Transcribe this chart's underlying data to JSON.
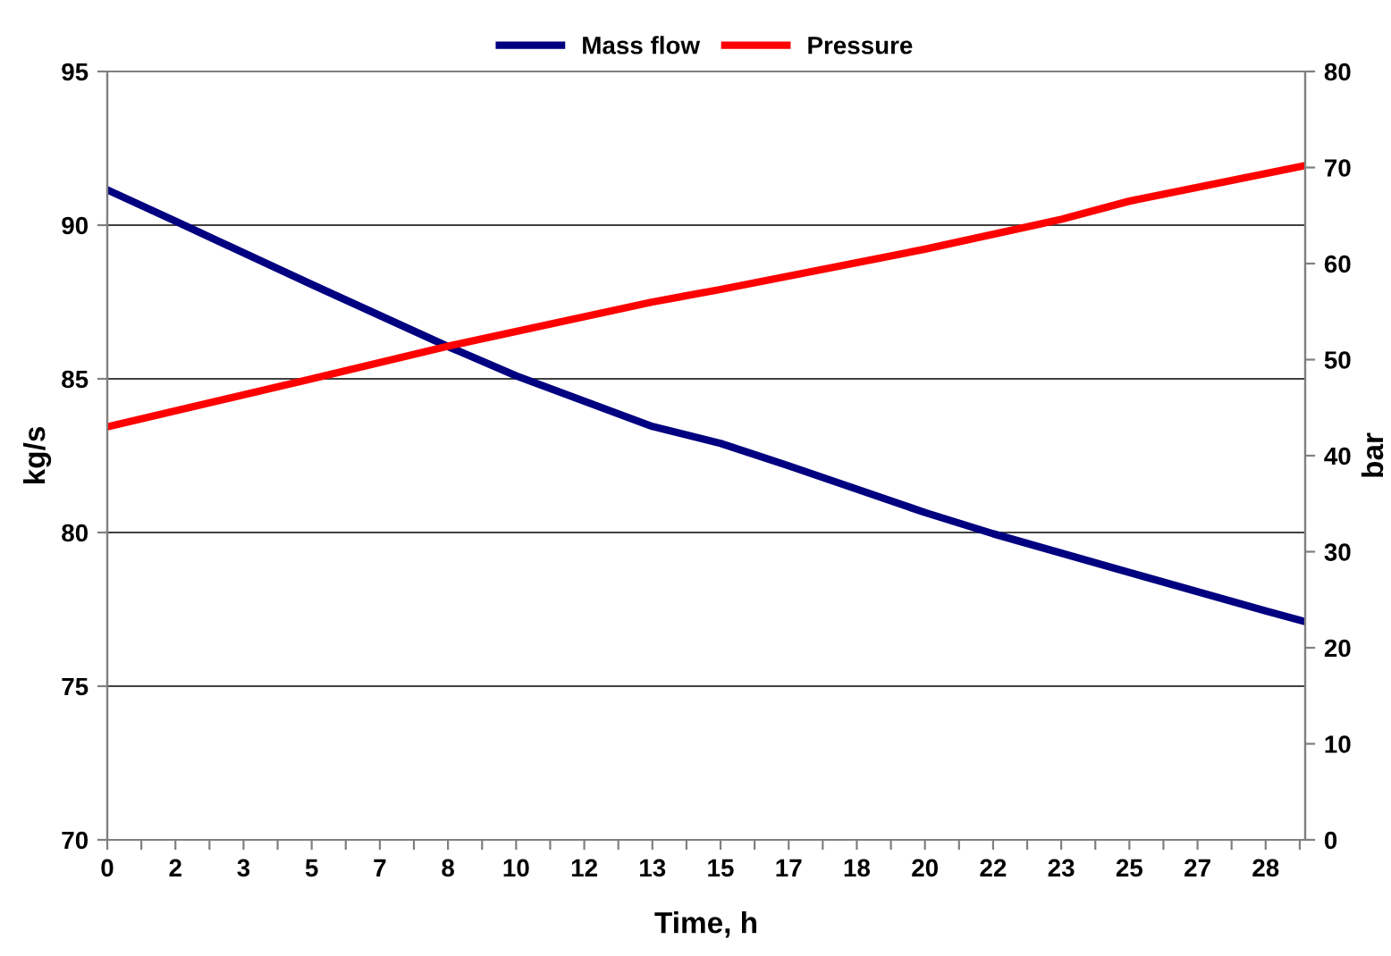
{
  "chart_data": {
    "type": "line",
    "xlabel": "Time, h",
    "ylabel": "kg/s",
    "y2label": "bar",
    "xlim": [
      0,
      29.3
    ],
    "xticks": [
      0,
      {
        "value": 0.833,
        "label": null
      },
      {
        "value": 1.667,
        "label": "2"
      },
      {
        "value": 2.5,
        "label": null
      },
      {
        "value": 3.333,
        "label": "3"
      },
      {
        "value": 4.167,
        "label": null
      },
      5,
      {
        "value": 5.833,
        "label": null
      },
      {
        "value": 6.667,
        "label": "7"
      },
      {
        "value": 7.5,
        "label": null
      },
      {
        "value": 8.333,
        "label": "8"
      },
      {
        "value": 9.167,
        "label": null
      },
      10,
      {
        "value": 10.833,
        "label": null
      },
      {
        "value": 11.667,
        "label": "12"
      },
      {
        "value": 12.5,
        "label": null
      },
      {
        "value": 13.333,
        "label": "13"
      },
      {
        "value": 14.167,
        "label": null
      },
      15,
      {
        "value": 15.833,
        "label": null
      },
      {
        "value": 16.667,
        "label": "17"
      },
      {
        "value": 17.5,
        "label": null
      },
      {
        "value": 18.333,
        "label": "18"
      },
      {
        "value": 19.167,
        "label": null
      },
      20,
      {
        "value": 20.833,
        "label": null
      },
      {
        "value": 21.667,
        "label": "22"
      },
      {
        "value": 22.5,
        "label": null
      },
      {
        "value": 23.333,
        "label": "23"
      },
      {
        "value": 24.167,
        "label": null
      },
      25,
      {
        "value": 25.833,
        "label": null
      },
      {
        "value": 26.667,
        "label": "27"
      },
      {
        "value": 27.5,
        "label": null
      },
      {
        "value": 28.333,
        "label": "28"
      },
      {
        "value": 29.167,
        "label": null
      }
    ],
    "ylim": [
      70,
      95
    ],
    "yticks": [
      70,
      75,
      80,
      85,
      90,
      95
    ],
    "y2lim": [
      0,
      80
    ],
    "y2ticks": [
      0,
      10,
      20,
      30,
      40,
      50,
      60,
      70,
      80
    ],
    "grid": "y",
    "legend": "top",
    "marker": "none",
    "line_style": "solid",
    "series": [
      {
        "name": "Mass flow",
        "color": "#000080",
        "x": [
          0,
          1.667,
          5,
          8.333,
          10,
          13.333,
          15,
          16.667,
          20,
          21.667,
          25,
          28.333,
          29.3
        ],
        "values": [
          91.15,
          90.13,
          88.07,
          86.05,
          85.1,
          83.45,
          82.9,
          82.17,
          80.65,
          79.96,
          78.7,
          77.45,
          77.1
        ]
      },
      {
        "name": "Pressure",
        "color": "#ff0000",
        "axis": "y2",
        "x": [
          0,
          5,
          8.333,
          13.333,
          15,
          20,
          23.333,
          25,
          29.3
        ],
        "values": [
          43.0,
          48.0,
          51.4,
          56.0,
          57.3,
          61.5,
          64.6,
          66.5,
          70.2
        ]
      }
    ]
  }
}
